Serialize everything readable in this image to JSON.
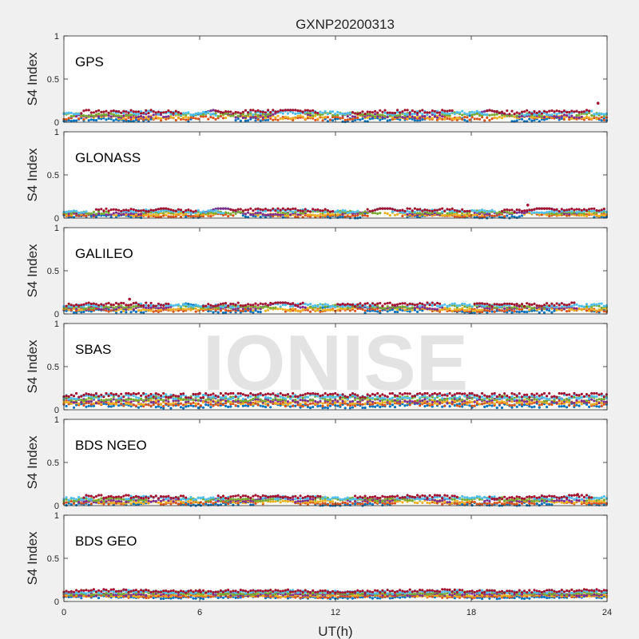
{
  "chart_data": {
    "type": "scatter",
    "title": "GXNP20200313",
    "xlabel": "UT(h)",
    "xlim": [
      0,
      24
    ],
    "xticks": [
      "0",
      "6",
      "12",
      "18",
      "24"
    ],
    "watermark": "IONISE",
    "series_colors": [
      "#0072bd",
      "#d95319",
      "#edb120",
      "#7e2f8e",
      "#77ac30",
      "#4dbeee",
      "#a2142f"
    ],
    "panels": [
      {
        "label": "GPS",
        "ylabel": "S4 Index",
        "ylim": [
          0,
          1
        ],
        "yticks": [
          "0",
          "0.5",
          "1"
        ],
        "typical_s4_range": [
          0.03,
          0.12
        ],
        "max_s4": 0.22,
        "max_at_ut": 23.6,
        "bumps": [
          {
            "ut": 10.0,
            "s4": 0.17
          },
          {
            "ut": 6.6,
            "s4": 0.14
          },
          {
            "ut": 18.8,
            "s4": 0.14
          }
        ]
      },
      {
        "label": "GLONASS",
        "ylabel": "S4 Index",
        "ylim": [
          0,
          1
        ],
        "yticks": [
          "0",
          "0.5",
          "1"
        ],
        "typical_s4_range": [
          0.02,
          0.09
        ],
        "max_s4": 0.15,
        "max_at_ut": 20.5,
        "bumps": [
          {
            "ut": 7.0,
            "s4": 0.13
          },
          {
            "ut": 14.2,
            "s4": 0.13
          },
          {
            "ut": 21.2,
            "s4": 0.14
          },
          {
            "ut": 4.4,
            "s4": 0.12
          }
        ]
      },
      {
        "label": "GALILEO",
        "ylabel": "S4 Index",
        "ylim": [
          0,
          1
        ],
        "yticks": [
          "0",
          "0.5",
          "1"
        ],
        "typical_s4_range": [
          0.03,
          0.11
        ],
        "max_s4": 0.17,
        "max_at_ut": 2.9,
        "bumps": [
          {
            "ut": 9.6,
            "s4": 0.15
          },
          {
            "ut": 5.4,
            "s4": 0.12
          },
          {
            "ut": 12.3,
            "s4": 0.11
          }
        ]
      },
      {
        "label": "SBAS",
        "ylabel": "S4 Index",
        "ylim": [
          0,
          1
        ],
        "yticks": [
          "0",
          "0.5",
          "1"
        ],
        "typical_s4_range": [
          0.05,
          0.17
        ],
        "max_s4": 0.19,
        "max_at_ut": 6.0,
        "bumps": []
      },
      {
        "label": "BDS NGEO",
        "ylabel": "S4 Index",
        "ylim": [
          0,
          1
        ],
        "yticks": [
          "0",
          "0.5",
          "1"
        ],
        "typical_s4_range": [
          0.02,
          0.1
        ],
        "max_s4": 0.13,
        "max_at_ut": 22.7,
        "bumps": [
          {
            "ut": 9.3,
            "s4": 0.11
          },
          {
            "ut": 15.4,
            "s4": 0.1
          }
        ]
      },
      {
        "label": "BDS GEO",
        "ylabel": "S4 Index",
        "ylim": [
          0,
          1
        ],
        "yticks": [
          "0",
          "0.5",
          "1"
        ],
        "typical_s4_range": [
          0.05,
          0.12
        ],
        "max_s4": 0.13,
        "max_at_ut": 6.0,
        "bumps": []
      }
    ]
  }
}
